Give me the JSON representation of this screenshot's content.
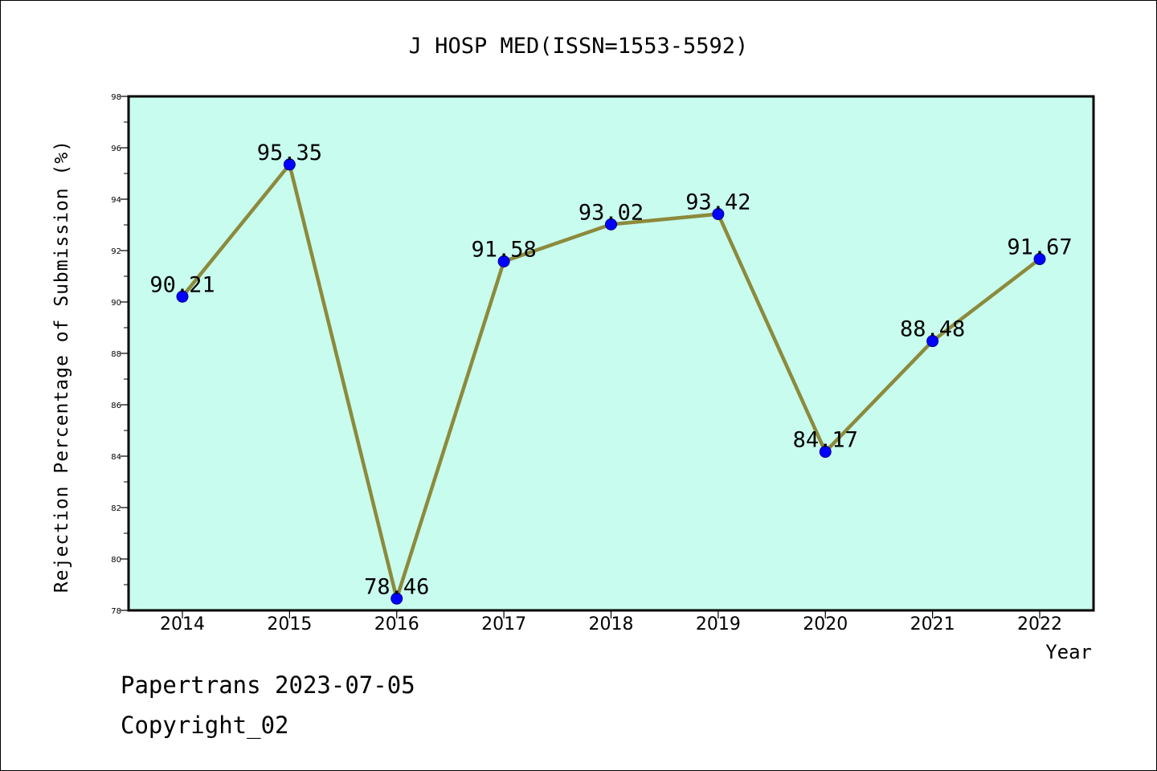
{
  "chart_data": {
    "type": "line",
    "title": "J HOSP MED(ISSN=1553-5592)",
    "xlabel": "Year",
    "ylabel": "Rejection Percentage of Submission (%)",
    "categories": [
      "2014",
      "2015",
      "2016",
      "2017",
      "2018",
      "2019",
      "2020",
      "2021",
      "2022"
    ],
    "values": [
      90.21,
      95.35,
      78.46,
      91.58,
      93.02,
      93.42,
      84.17,
      88.48,
      91.67
    ],
    "value_labels": [
      "90.21",
      "95.35",
      "78.46",
      "91.58",
      "93.02",
      "93.42",
      "84.17",
      "88.48",
      "91.67"
    ],
    "ylim": [
      78,
      98
    ],
    "yticks": [
      "78",
      "80",
      "82",
      "84",
      "86",
      "88",
      "90",
      "92",
      "94",
      "96",
      "98"
    ],
    "grid": false,
    "legend": "none",
    "colors": {
      "plot_background": "#c8fcee",
      "line": "#8c8a3c",
      "marker": "#0000ff"
    }
  },
  "footer": {
    "line1": "Papertrans 2023-07-05",
    "line2": "Copyright_02"
  }
}
